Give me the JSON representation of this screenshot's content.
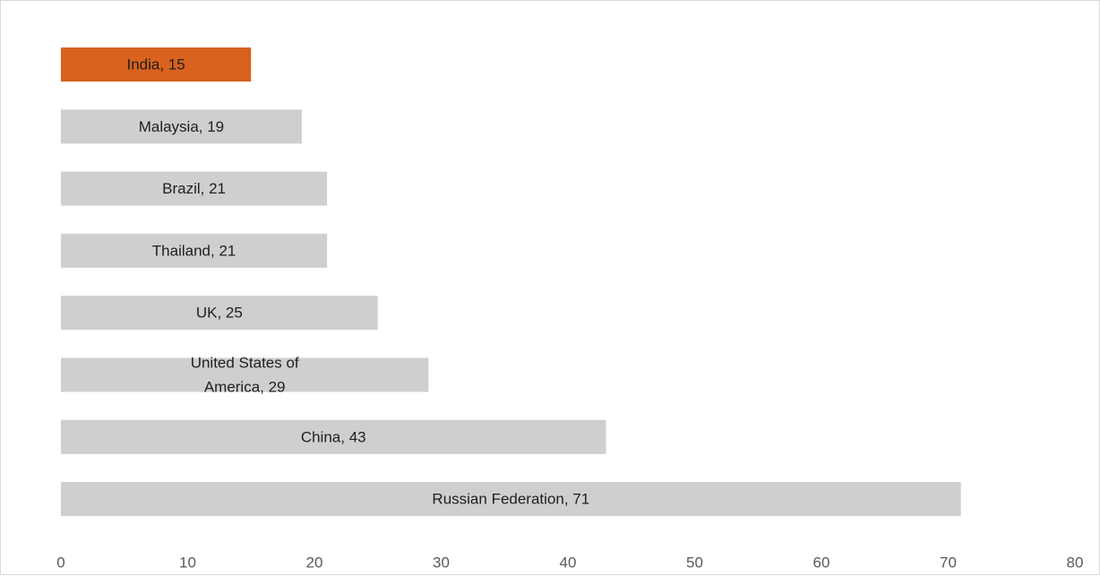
{
  "chart_data": {
    "type": "bar",
    "orientation": "horizontal",
    "categories": [
      "India",
      "Malaysia",
      "Brazil",
      "Thailand",
      "UK",
      "United States of America",
      "China",
      "Russian Federation"
    ],
    "values": [
      15,
      19,
      21,
      21,
      25,
      29,
      43,
      71
    ],
    "data_labels": [
      [
        "India, 15"
      ],
      [
        "Malaysia, 19"
      ],
      [
        "Brazil, 21"
      ],
      [
        "Thailand, 21"
      ],
      [
        "UK, 25"
      ],
      [
        "United States of",
        "America, 29"
      ],
      [
        "China, 43"
      ],
      [
        "Russian Federation, 71"
      ]
    ],
    "highlight_color": "#d8621e",
    "bar_color": "#d0cece",
    "title": "",
    "xlabel": "",
    "ylabel": "",
    "xlim": [
      0,
      80
    ],
    "xticks": [
      "0",
      "10",
      "20",
      "30",
      "40",
      "50",
      "60",
      "70",
      "80"
    ],
    "grid": false,
    "legend": "none"
  }
}
